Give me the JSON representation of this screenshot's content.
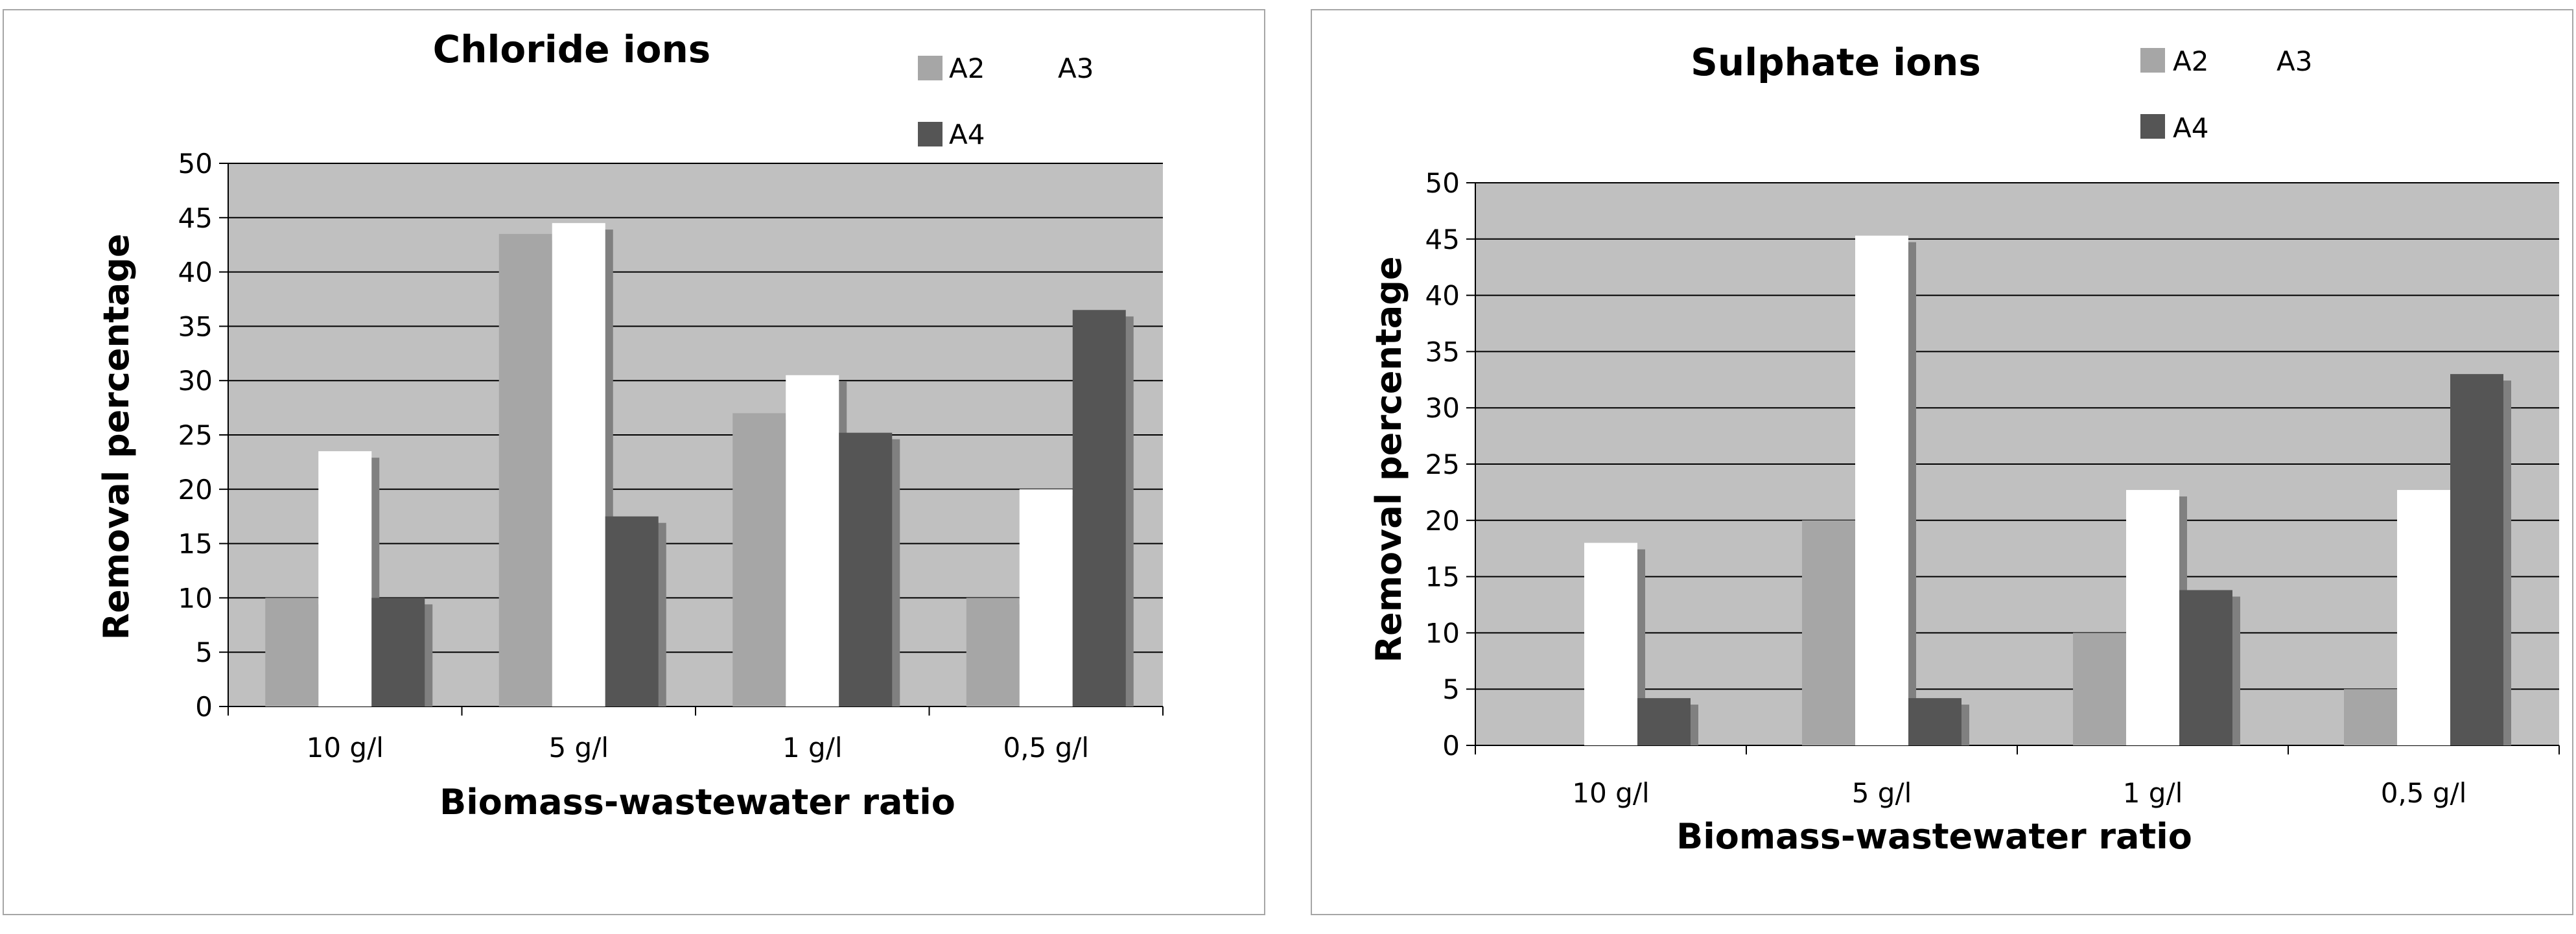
{
  "chart_data": [
    {
      "type": "bar",
      "title": "Chloride ions",
      "xlabel": "Biomass-wastewater ratio",
      "ylabel": "Removal percentage",
      "categories": [
        "10 g/l",
        "5 g/l",
        "1 g/l",
        "0,5 g/l"
      ],
      "series": [
        {
          "name": "A2",
          "color": "#a6a6a6",
          "values": [
            10,
            43.5,
            27,
            10
          ]
        },
        {
          "name": "A3",
          "color": "#ffffff",
          "values": [
            23.5,
            44.5,
            30.5,
            20
          ]
        },
        {
          "name": "A4",
          "color": "#555555",
          "values": [
            10,
            17.5,
            25.2,
            36.5
          ]
        }
      ],
      "ylim": [
        0,
        50
      ],
      "yticks": [
        "0",
        "5",
        "10",
        "15",
        "20",
        "25",
        "30",
        "35",
        "40",
        "45",
        "50"
      ],
      "grid": true,
      "legend": "top-right"
    },
    {
      "type": "bar",
      "title": "Sulphate ions",
      "xlabel": "Biomass-wastewater ratio",
      "ylabel": "Removal percentage",
      "categories": [
        "10 g/l",
        "5 g/l",
        "1 g/l",
        "0,5 g/l"
      ],
      "series": [
        {
          "name": "A2",
          "color": "#a6a6a6",
          "values": [
            0,
            20,
            10,
            5
          ]
        },
        {
          "name": "A3",
          "color": "#ffffff",
          "values": [
            18,
            45.3,
            22.7,
            22.7
          ]
        },
        {
          "name": "A4",
          "color": "#555555",
          "values": [
            4.2,
            4.2,
            13.8,
            33
          ]
        }
      ],
      "ylim": [
        0,
        50
      ],
      "yticks": [
        "0",
        "5",
        "10",
        "15",
        "20",
        "25",
        "30",
        "35",
        "40",
        "45",
        "50"
      ],
      "grid": true,
      "legend": "top-right"
    }
  ]
}
